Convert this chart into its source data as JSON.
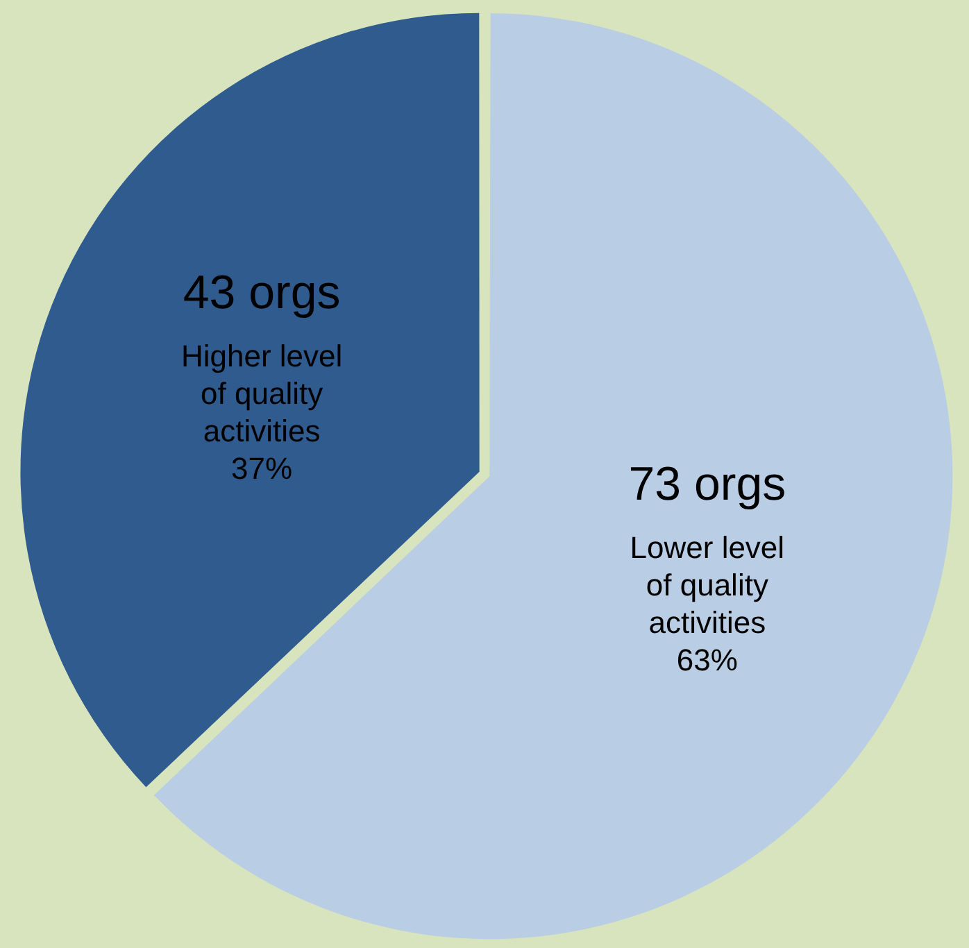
{
  "chart_data": {
    "type": "pie",
    "categories": [
      "Lower level of quality activities 63%",
      "Higher level of quality activities 37%"
    ],
    "values": [
      73,
      43
    ],
    "value_labels": [
      "73 orgs",
      "43 orgs"
    ],
    "colors": [
      "#b9cde5",
      "#2f5b8f"
    ],
    "legend": false
  }
}
